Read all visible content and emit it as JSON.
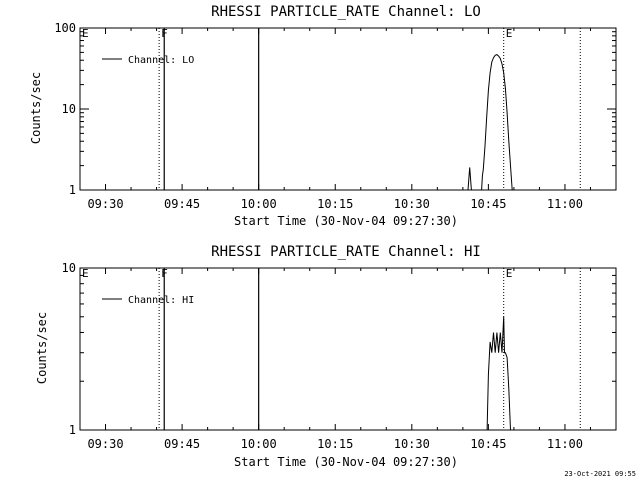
{
  "footer": {
    "timestamp": "23-Oct-2021 09:55"
  },
  "chart_data": [
    {
      "type": "line",
      "title": "RHESSI PARTICLE_RATE Channel: LO",
      "xlabel": "Start Time (30-Nov-04 09:27:30)",
      "ylabel": "Counts/sec",
      "y_scale": "log",
      "xlim": [
        "09:25",
        "11:10"
      ],
      "ylim": [
        1,
        100
      ],
      "x_ticks": [
        "09:30",
        "09:45",
        "10:00",
        "10:15",
        "10:30",
        "10:45",
        "11:00"
      ],
      "y_ticks": [
        "1",
        "10",
        "100"
      ],
      "legend": {
        "position": "top-left",
        "entries": [
          "Channel: LO"
        ]
      },
      "grid": false,
      "markers": [
        {
          "label": "E",
          "x": "09:25",
          "style": "none"
        },
        {
          "label": "F",
          "x": "09:40:30",
          "style": "dotted"
        },
        {
          "label": "E",
          "x": "10:48",
          "style": "dotted"
        },
        {
          "label": "",
          "x": "11:03",
          "style": "dotted"
        }
      ],
      "vertical_lines": [
        {
          "x": "09:41:30",
          "style": "solid"
        },
        {
          "x": "10:00",
          "style": "solid"
        }
      ],
      "series": [
        {
          "name": "Channel: LO",
          "points": [
            [
              "10:41",
              1
            ],
            [
              "10:41:20",
              1.9
            ],
            [
              "10:41:40",
              1
            ],
            [
              "10:43:40",
              1
            ],
            [
              "10:43:50",
              1.5
            ],
            [
              "10:44",
              1.8
            ],
            [
              "10:44:20",
              3.5
            ],
            [
              "10:44:40",
              8
            ],
            [
              "10:45",
              17
            ],
            [
              "10:45:20",
              28
            ],
            [
              "10:45:40",
              38
            ],
            [
              "10:46",
              43
            ],
            [
              "10:46:20",
              46
            ],
            [
              "10:46:40",
              47
            ],
            [
              "10:47",
              45
            ],
            [
              "10:47:20",
              42
            ],
            [
              "10:47:40",
              36
            ],
            [
              "10:48",
              28
            ],
            [
              "10:48:20",
              18
            ],
            [
              "10:48:40",
              9
            ],
            [
              "10:49",
              4
            ],
            [
              "10:49:20",
              2
            ],
            [
              "10:49:40",
              1
            ]
          ]
        }
      ]
    },
    {
      "type": "line",
      "title": "RHESSI PARTICLE_RATE Channel: HI",
      "xlabel": "Start Time (30-Nov-04 09:27:30)",
      "ylabel": "Counts/sec",
      "y_scale": "log",
      "xlim": [
        "09:25",
        "11:10"
      ],
      "ylim": [
        1,
        10
      ],
      "x_ticks": [
        "09:30",
        "09:45",
        "10:00",
        "10:15",
        "10:30",
        "10:45",
        "11:00"
      ],
      "y_ticks": [
        "1",
        "10"
      ],
      "legend": {
        "position": "top-left",
        "entries": [
          "Channel: HI"
        ]
      },
      "grid": false,
      "markers": [
        {
          "label": "E",
          "x": "09:25",
          "style": "none"
        },
        {
          "label": "F",
          "x": "09:40:30",
          "style": "dotted"
        },
        {
          "label": "E",
          "x": "10:48",
          "style": "dotted"
        },
        {
          "label": "",
          "x": "11:03",
          "style": "dotted"
        }
      ],
      "vertical_lines": [
        {
          "x": "09:41:30",
          "style": "solid"
        },
        {
          "x": "10:00",
          "style": "solid"
        }
      ],
      "series": [
        {
          "name": "Channel: HI",
          "points": [
            [
              "10:44:45",
              1
            ],
            [
              "10:45",
              2.2
            ],
            [
              "10:45:20",
              3.5
            ],
            [
              "10:45:40",
              3
            ],
            [
              "10:46",
              4
            ],
            [
              "10:46:20",
              3
            ],
            [
              "10:46:40",
              4
            ],
            [
              "10:47",
              3
            ],
            [
              "10:47:20",
              4
            ],
            [
              "10:47:40",
              3
            ],
            [
              "10:48",
              5
            ],
            [
              "10:48:10",
              3
            ],
            [
              "10:48:20",
              3
            ],
            [
              "10:48:40",
              2.8
            ],
            [
              "10:49",
              1.8
            ],
            [
              "10:49:20",
              1
            ]
          ]
        }
      ]
    }
  ]
}
